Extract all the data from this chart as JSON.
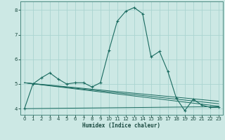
{
  "xlabel": "Humidex (Indice chaleur)",
  "bg_color": "#cce8e4",
  "grid_color": "#aad4d0",
  "line_color": "#1a6b60",
  "xlim": [
    -0.5,
    23.5
  ],
  "ylim": [
    3.75,
    8.35
  ],
  "xticks": [
    0,
    1,
    2,
    3,
    4,
    5,
    6,
    7,
    8,
    9,
    10,
    11,
    12,
    13,
    14,
    15,
    16,
    17,
    18,
    19,
    20,
    21,
    22,
    23
  ],
  "yticks": [
    4,
    5,
    6,
    7,
    8
  ],
  "main_x": [
    0,
    1,
    2,
    3,
    4,
    5,
    6,
    7,
    8,
    9,
    10,
    11,
    12,
    13,
    14,
    15,
    16,
    17,
    18,
    19,
    20,
    21,
    22,
    23
  ],
  "main_y": [
    4.0,
    5.0,
    5.25,
    5.45,
    5.2,
    5.0,
    5.05,
    5.05,
    4.88,
    5.05,
    6.35,
    7.55,
    7.95,
    8.1,
    7.85,
    6.1,
    6.32,
    5.5,
    4.42,
    3.92,
    4.38,
    4.15,
    4.05,
    4.05
  ],
  "trend_lines": [
    {
      "x": [
        0,
        23
      ],
      "y": [
        5.05,
        4.1
      ]
    },
    {
      "x": [
        0,
        23
      ],
      "y": [
        4.0,
        4.08
      ]
    },
    {
      "x": [
        0,
        23
      ],
      "y": [
        5.05,
        4.3
      ]
    },
    {
      "x": [
        0,
        23
      ],
      "y": [
        5.05,
        4.2
      ]
    }
  ]
}
